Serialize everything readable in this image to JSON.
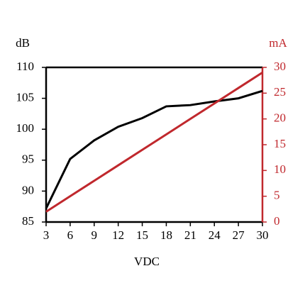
{
  "chart_data": {
    "type": "line",
    "y_label": "dB",
    "y2_label": "mA",
    "x_label": "VDC",
    "x": [
      3,
      6,
      9,
      12,
      15,
      18,
      21,
      24,
      27,
      30
    ],
    "series": [
      {
        "name": "dB",
        "color": "#000000",
        "values": [
          87.2,
          95.2,
          98.2,
          100.4,
          101.8,
          103.7,
          103.9,
          104.5,
          105.0,
          106.2
        ]
      },
      {
        "name": "mA",
        "color": "#c0282d",
        "axis": "y2",
        "values": [
          2,
          5,
          8,
          11,
          14,
          17,
          20,
          23,
          26,
          29
        ]
      }
    ],
    "xlim": [
      3,
      30
    ],
    "xticks": [
      3,
      6,
      9,
      12,
      15,
      18,
      21,
      24,
      27,
      30
    ],
    "ylim": [
      85,
      110
    ],
    "yticks": [
      85,
      90,
      95,
      100,
      105,
      110
    ],
    "y2lim": [
      0,
      30
    ],
    "y2ticks": [
      0,
      5,
      10,
      15,
      20,
      25,
      30
    ],
    "y2_color": "#c0282d",
    "grid": false
  }
}
